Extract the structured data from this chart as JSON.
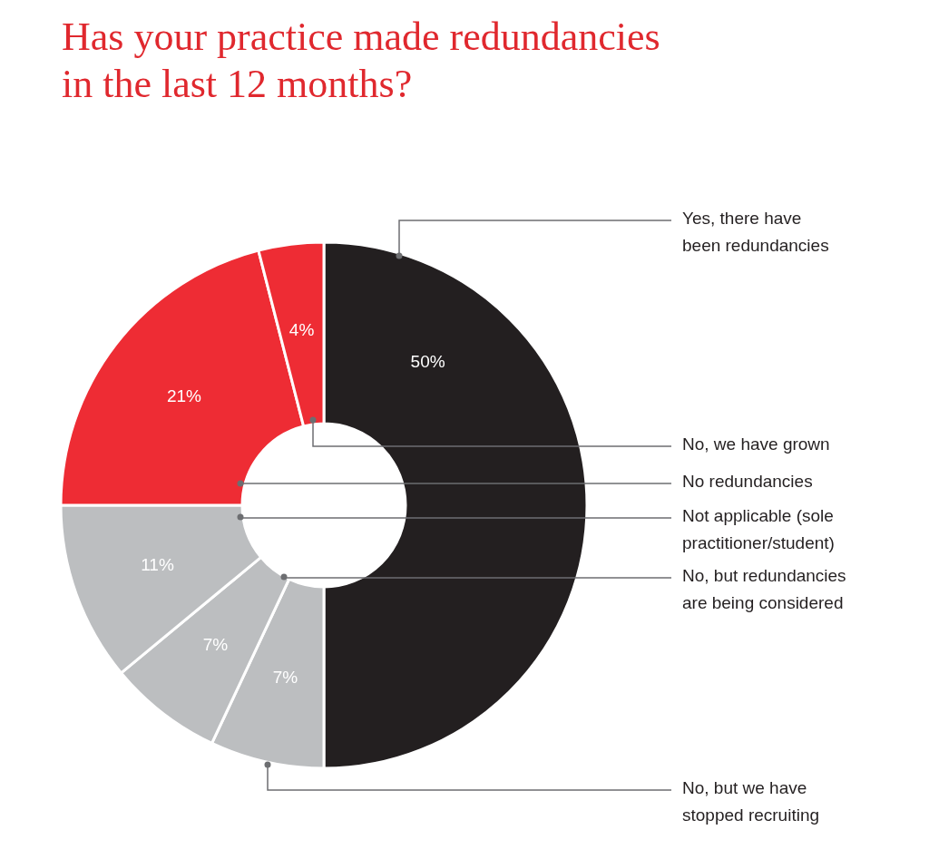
{
  "chart_data": {
    "type": "donut",
    "title": "Has your practice made redundancies\nin the last 12 months?",
    "categories": [
      "Yes, there have\nbeen redundancies",
      "No, but we have\nstopped recruiting",
      "No, but redundancies\nare being considered",
      "Not applicable (sole\npractitioner/student)",
      "No redundancies",
      "No, we have grown"
    ],
    "values": [
      50,
      7,
      7,
      11,
      21,
      4
    ],
    "colors": [
      "#231f20",
      "#bcbec0",
      "#bcbec0",
      "#bcbec0",
      "#ee2c34",
      "#ee2c34"
    ],
    "value_labels": [
      "50%",
      "7%",
      "7%",
      "11%",
      "21%",
      "4%"
    ]
  }
}
